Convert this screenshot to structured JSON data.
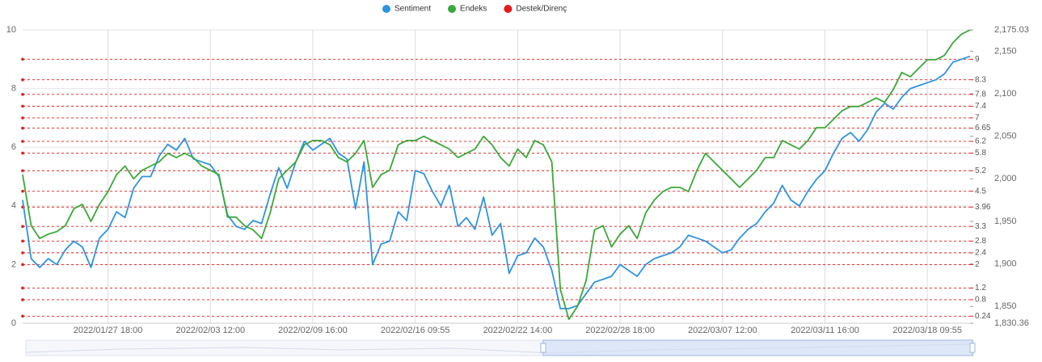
{
  "chart_data": {
    "type": "line",
    "categories": [
      null,
      null,
      null,
      null,
      null,
      null,
      null,
      null,
      null,
      null,
      "2022/01/27 18:00",
      null,
      null,
      null,
      null,
      null,
      null,
      null,
      null,
      null,
      null,
      null,
      "2022/02/03 12:00",
      null,
      null,
      null,
      null,
      null,
      null,
      null,
      null,
      null,
      null,
      null,
      "2022/02/09 16:00",
      null,
      null,
      null,
      null,
      null,
      null,
      null,
      null,
      null,
      null,
      null,
      "2022/02/16 09:55",
      null,
      null,
      null,
      null,
      null,
      null,
      null,
      null,
      null,
      null,
      null,
      "2022/02/22 14:00",
      null,
      null,
      null,
      null,
      null,
      null,
      null,
      null,
      null,
      null,
      null,
      "2022/02/28 18:00",
      null,
      null,
      null,
      null,
      null,
      null,
      null,
      null,
      null,
      null,
      null,
      "2022/03/07 12:00",
      null,
      null,
      null,
      null,
      null,
      null,
      null,
      null,
      null,
      null,
      null,
      "2022/03/11 16:00",
      null,
      null,
      null,
      null,
      null,
      null,
      null,
      null,
      null,
      null,
      null,
      "2022/03/18 09:55",
      null,
      null,
      null,
      null,
      null
    ],
    "series": [
      {
        "name": "Sentiment",
        "color": "#2e93e0",
        "axis": "y",
        "values": [
          4.2,
          2.2,
          1.9,
          2.2,
          2.0,
          2.5,
          2.8,
          2.6,
          1.9,
          2.9,
          3.2,
          3.8,
          3.6,
          4.6,
          5.0,
          5.0,
          5.7,
          6.1,
          5.9,
          6.3,
          5.6,
          5.5,
          5.4,
          5.0,
          3.7,
          3.3,
          3.2,
          3.5,
          3.4,
          4.4,
          5.3,
          4.6,
          5.5,
          6.2,
          5.9,
          6.1,
          6.3,
          5.8,
          5.6,
          3.9,
          5.5,
          2.0,
          2.7,
          2.8,
          3.8,
          3.5,
          5.2,
          5.1,
          4.5,
          4.0,
          4.7,
          3.3,
          3.6,
          3.2,
          4.3,
          3.0,
          3.4,
          1.7,
          2.3,
          2.4,
          2.9,
          2.6,
          1.8,
          0.5,
          0.5,
          0.6,
          1.0,
          1.4,
          1.5,
          1.6,
          2.0,
          1.8,
          1.6,
          2.0,
          2.2,
          2.3,
          2.4,
          2.6,
          3.0,
          2.9,
          2.8,
          2.6,
          2.4,
          2.5,
          2.9,
          3.2,
          3.4,
          3.8,
          4.1,
          4.7,
          4.2,
          4.0,
          4.5,
          4.9,
          5.2,
          5.8,
          6.3,
          6.5,
          6.2,
          6.6,
          7.2,
          7.5,
          7.3,
          7.7,
          8.0,
          8.1,
          8.2,
          8.3,
          8.5,
          8.9,
          9.0,
          9.1
        ]
      },
      {
        "name": "Endeks",
        "color": "#3aa83a",
        "axis": "y2",
        "values": [
          2005,
          1945,
          1930,
          1935,
          1938,
          1945,
          1965,
          1970,
          1950,
          1970,
          1985,
          2005,
          2015,
          2000,
          2010,
          2015,
          2020,
          2030,
          2025,
          2030,
          2025,
          2015,
          2010,
          2005,
          1955,
          1955,
          1945,
          1940,
          1930,
          1960,
          2000,
          2010,
          2020,
          2040,
          2045,
          2045,
          2040,
          2025,
          2020,
          2030,
          2045,
          1990,
          2005,
          2010,
          2040,
          2045,
          2045,
          2050,
          2045,
          2040,
          2035,
          2025,
          2030,
          2035,
          2050,
          2040,
          2025,
          2015,
          2035,
          2025,
          2045,
          2040,
          2020,
          1870,
          1835,
          1850,
          1880,
          1940,
          1945,
          1920,
          1935,
          1945,
          1930,
          1960,
          1975,
          1985,
          1990,
          1990,
          1985,
          2010,
          2030,
          2020,
          2010,
          2000,
          1990,
          2000,
          2010,
          2025,
          2025,
          2045,
          2040,
          2035,
          2045,
          2060,
          2060,
          2070,
          2080,
          2085,
          2085,
          2090,
          2095,
          2090,
          2105,
          2125,
          2120,
          2130,
          2140,
          2140,
          2145,
          2160,
          2170,
          2175
        ]
      }
    ],
    "support_resistance": {
      "name": "Destek/Direnç",
      "color": "#e31a1a",
      "levels": [
        9,
        8.3,
        7.8,
        7.4,
        7,
        6.65,
        6.2,
        5.8,
        5.2,
        4.5,
        3.96,
        3.3,
        2.8,
        2.4,
        2,
        1.2,
        0.8,
        0.24
      ]
    },
    "ylim": [
      0,
      10
    ],
    "yticks": [
      0,
      2,
      4,
      6,
      8,
      10
    ],
    "y2lim": [
      1830.36,
      2175.03
    ],
    "y2ticks": [
      {
        "value": 1830.36,
        "label": "1,830.36"
      },
      {
        "value": 1850,
        "label": "1,850"
      },
      {
        "value": 1900,
        "label": "1,900"
      },
      {
        "value": 1950,
        "label": "1,950"
      },
      {
        "value": 2000,
        "label": "2,000"
      },
      {
        "value": 2050,
        "label": "2,050"
      },
      {
        "value": 2100,
        "label": "2,100"
      },
      {
        "value": 2150,
        "label": "2,150"
      },
      {
        "value": 2175.03,
        "label": "2,175.03"
      }
    ],
    "grid": true,
    "legend": "top"
  }
}
